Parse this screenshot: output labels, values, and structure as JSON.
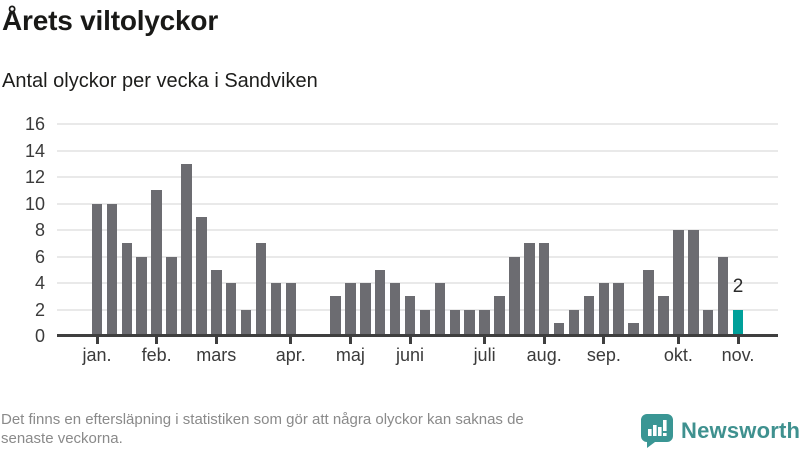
{
  "header": {
    "title": "Årets viltolyckor",
    "subtitle": "Antal olyckor per vecka i Sandviken"
  },
  "footer": {
    "line1": "Det finns en eftersläpning i statistiken som gör att några olyckor kan saknas de",
    "line2": "senaste veckorna."
  },
  "logo": {
    "text": "Newsworthy",
    "icon": "newsworthy-speech-bubble-bar-chart-icon",
    "icon_color": "#3a9694",
    "text_color": "#3f918f"
  },
  "colors": {
    "bar": "#6c6c71",
    "highlight_bar": "#00a09a",
    "axis": "#3f3f3f",
    "grid": "#e9e9e9",
    "tick_label": "#3b3b3b",
    "footer_text": "#8a8a8a",
    "background": "#ffffff"
  },
  "chart_data": {
    "type": "bar",
    "title": "Årets viltolyckor",
    "subtitle": "Antal olyckor per vecka i Sandviken",
    "x_unit": "vecka",
    "values": [
      10,
      10,
      7,
      6,
      11,
      6,
      13,
      9,
      5,
      4,
      2,
      7,
      4,
      4,
      0,
      0,
      3,
      4,
      4,
      5,
      4,
      3,
      2,
      4,
      2,
      2,
      2,
      3,
      6,
      7,
      7,
      1,
      2,
      3,
      4,
      4,
      1,
      5,
      3,
      8,
      8,
      2,
      6,
      2
    ],
    "months": [
      {
        "label": "jan.",
        "week_index": 0
      },
      {
        "label": "feb.",
        "week_index": 4
      },
      {
        "label": "mars",
        "week_index": 8
      },
      {
        "label": "apr.",
        "week_index": 13
      },
      {
        "label": "maj",
        "week_index": 17
      },
      {
        "label": "juni",
        "week_index": 21
      },
      {
        "label": "juli",
        "week_index": 26
      },
      {
        "label": "aug.",
        "week_index": 30
      },
      {
        "label": "sep.",
        "week_index": 34
      },
      {
        "label": "okt.",
        "week_index": 39
      },
      {
        "label": "nov.",
        "week_index": 43
      }
    ],
    "highlight_index": 43,
    "highlight_label": "2",
    "ylim": [
      0,
      16
    ],
    "yticks": [
      0,
      2,
      4,
      6,
      8,
      10,
      12,
      14,
      16
    ],
    "grid": true,
    "legend": null
  }
}
